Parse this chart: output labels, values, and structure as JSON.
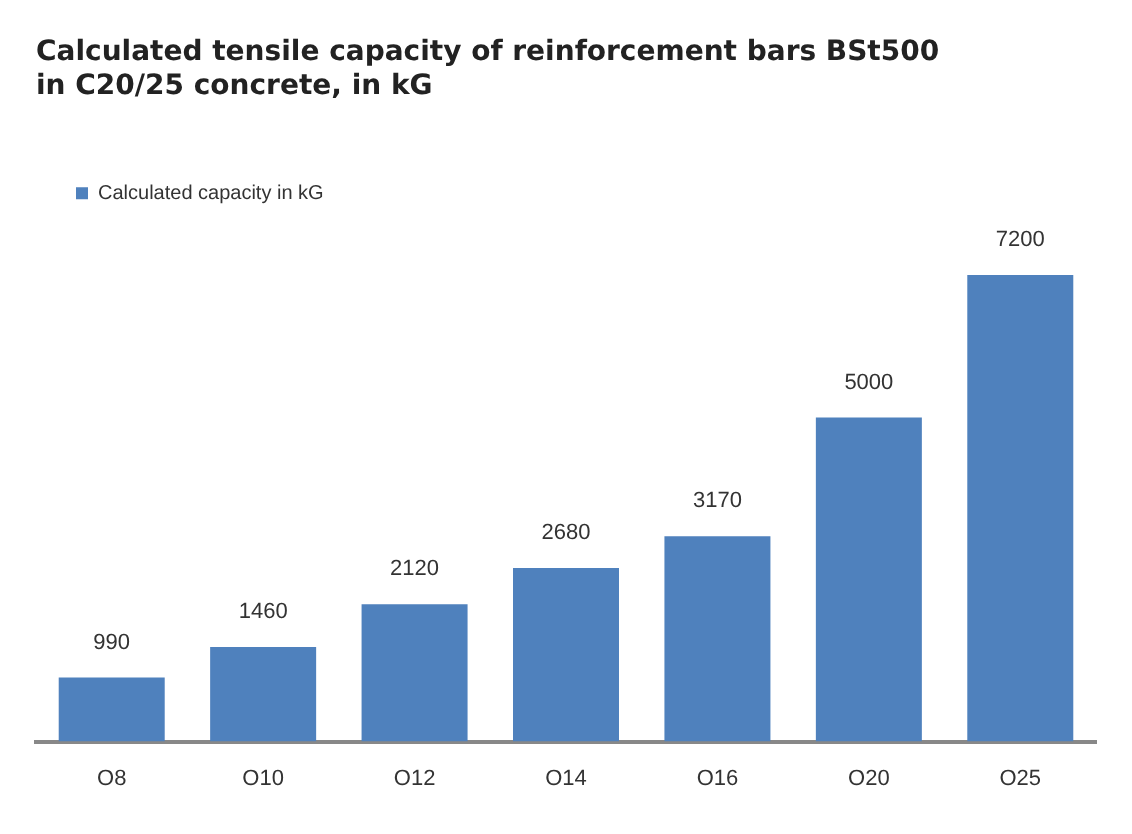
{
  "chart_data": {
    "type": "bar",
    "title": [
      "Calculated tensile capacity of reinforcement bars BSt500",
      "in C20/25 concrete, in kG"
    ],
    "categories": [
      "O8",
      "O10",
      "O12",
      "O14",
      "O16",
      "O20",
      "O25"
    ],
    "series": [
      {
        "name": "Calculated capacity in kG",
        "color": "#4f81bd",
        "values": [
          990,
          1460,
          2120,
          2680,
          3170,
          5000,
          7200
        ]
      }
    ],
    "data_labels": true,
    "legend": "top left",
    "grid": false
  }
}
